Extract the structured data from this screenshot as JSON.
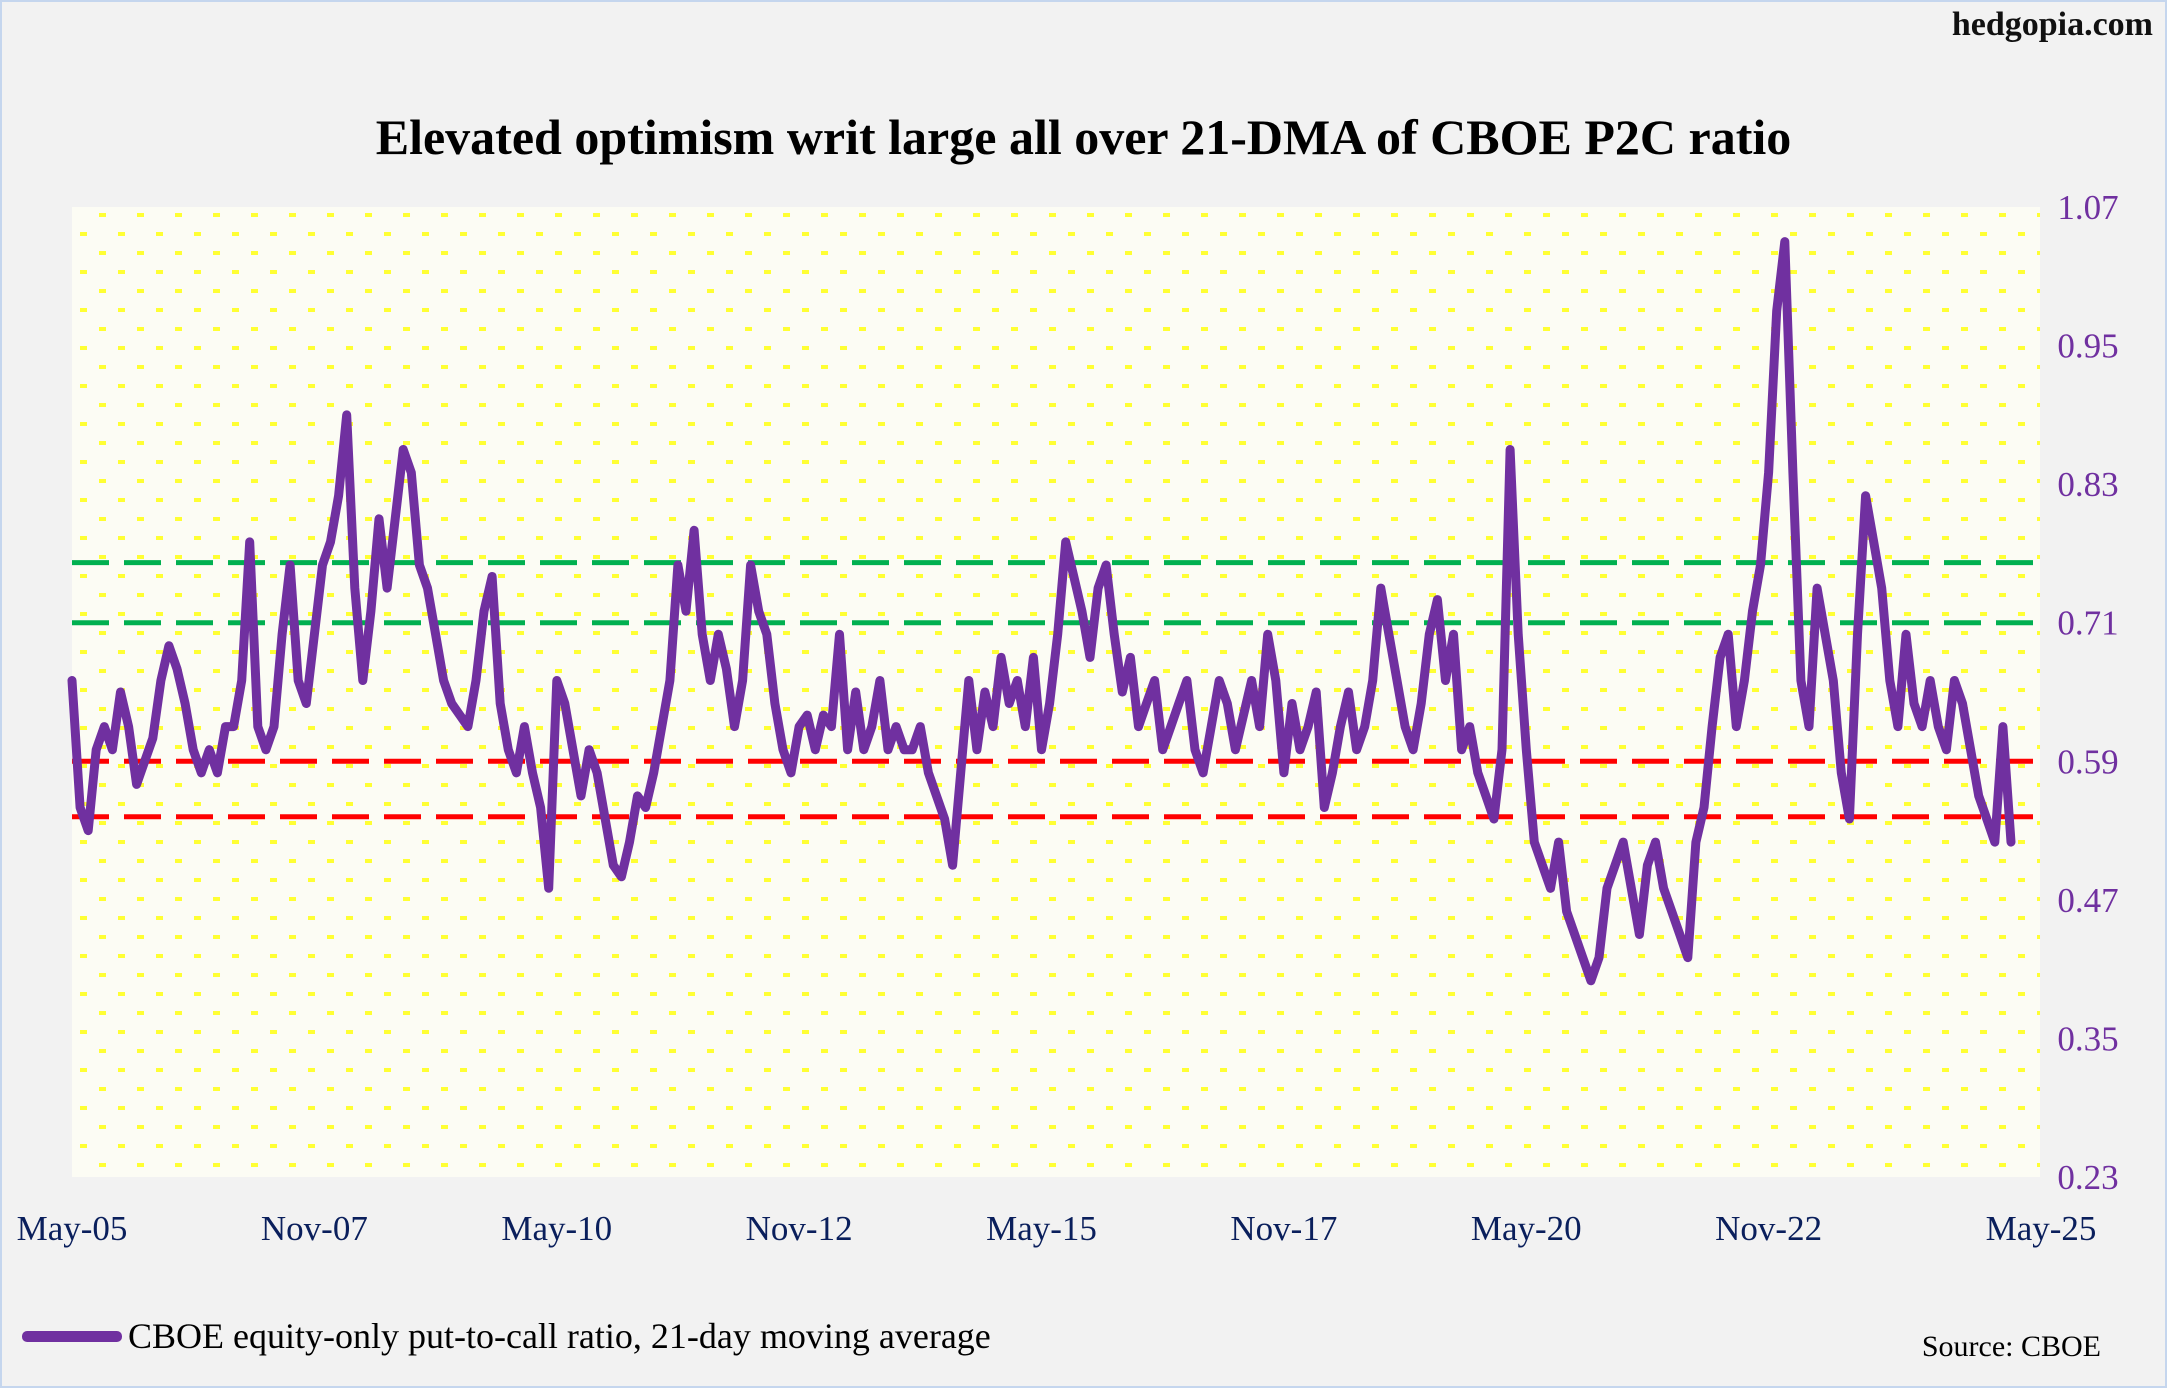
{
  "brand": "hedgopia.com",
  "chart_data": {
    "type": "line",
    "title": "Elevated optimism writ large all over 21-DMA of CBOE P2C ratio",
    "xlabel": "",
    "ylabel": "",
    "ylim": [
      0.23,
      1.07
    ],
    "yticks": [
      "1.07",
      "0.95",
      "0.83",
      "0.71",
      "0.59",
      "0.47",
      "0.35",
      "0.23"
    ],
    "xticks": [
      {
        "label": "May-05",
        "date": "2005-05"
      },
      {
        "label": "Nov-07",
        "date": "2007-11"
      },
      {
        "label": "May-10",
        "date": "2010-05"
      },
      {
        "label": "Nov-12",
        "date": "2012-11"
      },
      {
        "label": "May-15",
        "date": "2015-05"
      },
      {
        "label": "Nov-17",
        "date": "2017-11"
      },
      {
        "label": "May-20",
        "date": "2020-05"
      },
      {
        "label": "Nov-22",
        "date": "2022-11"
      },
      {
        "label": "May-25",
        "date": "2025-05"
      }
    ],
    "grid": "yellow dotted background",
    "legend_position": "bottom-left",
    "series": [
      {
        "name": "CBOE equity-only put-to-call ratio, 21-day moving average",
        "color": "#7030a0",
        "start": "2005-05",
        "frequency": "monthly",
        "values": [
          0.66,
          0.55,
          0.53,
          0.6,
          0.62,
          0.6,
          0.65,
          0.62,
          0.57,
          0.59,
          0.61,
          0.66,
          0.69,
          0.67,
          0.64,
          0.6,
          0.58,
          0.6,
          0.58,
          0.62,
          0.62,
          0.66,
          0.78,
          0.62,
          0.6,
          0.62,
          0.7,
          0.76,
          0.66,
          0.64,
          0.7,
          0.76,
          0.78,
          0.82,
          0.89,
          0.74,
          0.66,
          0.72,
          0.8,
          0.74,
          0.8,
          0.86,
          0.84,
          0.76,
          0.74,
          0.7,
          0.66,
          0.64,
          0.63,
          0.62,
          0.66,
          0.72,
          0.75,
          0.64,
          0.6,
          0.58,
          0.62,
          0.58,
          0.55,
          0.48,
          0.66,
          0.64,
          0.6,
          0.56,
          0.6,
          0.58,
          0.54,
          0.5,
          0.49,
          0.52,
          0.56,
          0.55,
          0.58,
          0.62,
          0.66,
          0.76,
          0.72,
          0.79,
          0.7,
          0.66,
          0.7,
          0.67,
          0.62,
          0.66,
          0.76,
          0.72,
          0.7,
          0.64,
          0.6,
          0.58,
          0.62,
          0.63,
          0.6,
          0.63,
          0.62,
          0.7,
          0.6,
          0.65,
          0.6,
          0.62,
          0.66,
          0.6,
          0.62,
          0.6,
          0.6,
          0.62,
          0.58,
          0.56,
          0.54,
          0.5,
          0.58,
          0.66,
          0.6,
          0.65,
          0.62,
          0.68,
          0.64,
          0.66,
          0.62,
          0.68,
          0.6,
          0.64,
          0.7,
          0.78,
          0.75,
          0.72,
          0.68,
          0.74,
          0.76,
          0.7,
          0.65,
          0.68,
          0.62,
          0.64,
          0.66,
          0.6,
          0.62,
          0.64,
          0.66,
          0.6,
          0.58,
          0.62,
          0.66,
          0.64,
          0.6,
          0.63,
          0.66,
          0.62,
          0.7,
          0.66,
          0.58,
          0.64,
          0.6,
          0.62,
          0.65,
          0.55,
          0.58,
          0.62,
          0.65,
          0.6,
          0.62,
          0.66,
          0.74,
          0.7,
          0.66,
          0.62,
          0.6,
          0.64,
          0.7,
          0.73,
          0.66,
          0.7,
          0.6,
          0.62,
          0.58,
          0.56,
          0.54,
          0.6,
          0.86,
          0.7,
          0.6,
          0.52,
          0.5,
          0.48,
          0.52,
          0.46,
          0.44,
          0.42,
          0.4,
          0.42,
          0.48,
          0.5,
          0.52,
          0.48,
          0.44,
          0.5,
          0.52,
          0.48,
          0.46,
          0.44,
          0.42,
          0.52,
          0.55,
          0.62,
          0.68,
          0.7,
          0.62,
          0.66,
          0.72,
          0.76,
          0.84,
          0.98,
          1.04,
          0.84,
          0.66,
          0.62,
          0.74,
          0.7,
          0.66,
          0.58,
          0.54,
          0.7,
          0.82,
          0.78,
          0.74,
          0.66,
          0.62,
          0.7,
          0.64,
          0.62,
          0.66,
          0.62,
          0.6,
          0.66,
          0.64,
          0.6,
          0.56,
          0.54,
          0.52,
          0.62,
          0.52
        ]
      }
    ],
    "reference_lines": [
      {
        "value": 0.762,
        "color": "#00b050",
        "style": "dashed"
      },
      {
        "value": 0.71,
        "color": "#00b050",
        "style": "dashed"
      },
      {
        "value": 0.59,
        "color": "#ff0000",
        "style": "dashed"
      },
      {
        "value": 0.542,
        "color": "#ff0000",
        "style": "dashed"
      }
    ]
  },
  "source": "Source: CBOE"
}
